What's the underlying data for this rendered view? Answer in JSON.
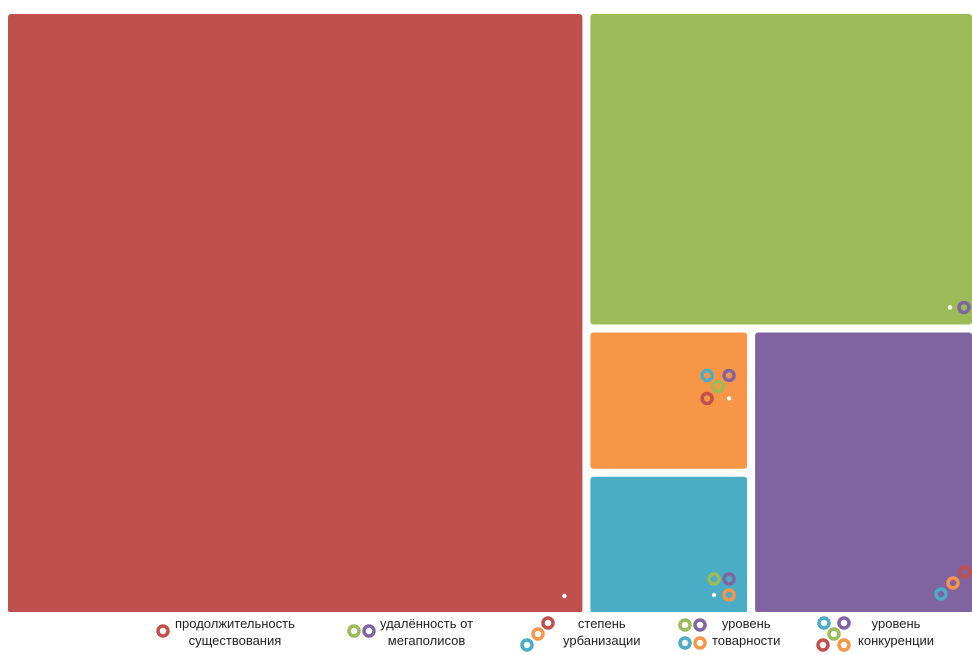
{
  "colors": {
    "red": "#c0504d",
    "green": "#9bbb59",
    "orange": "#f79646",
    "teal": "#4bacc6",
    "purple": "#8064a2",
    "background": "#ffffff"
  },
  "chart_data": {
    "type": "treemap",
    "title": "",
    "items": [
      {
        "label": "продолжительность существования",
        "value": 60,
        "color": "#c0504d"
      },
      {
        "label": "удалённость от мегаполисов",
        "value": 21,
        "color": "#9bbb59"
      },
      {
        "label": "степень урбанизации",
        "value": 4,
        "color": "#f79646"
      },
      {
        "label": "уровень товарности",
        "value": 4,
        "color": "#4bacc6"
      },
      {
        "label": "уровень конкуренции",
        "value": 11,
        "color": "#8064a2"
      }
    ],
    "legend": "bottom"
  },
  "legend": [
    {
      "line1": "продолжительность",
      "line2": "существования"
    },
    {
      "line1": "удалённость от",
      "line2": "мегаполисов"
    },
    {
      "line1": "степень",
      "line2": "урбанизации"
    },
    {
      "line1": "уровень",
      "line2": "товарности"
    },
    {
      "line1": "уровень",
      "line2": "конкуренции"
    }
  ]
}
